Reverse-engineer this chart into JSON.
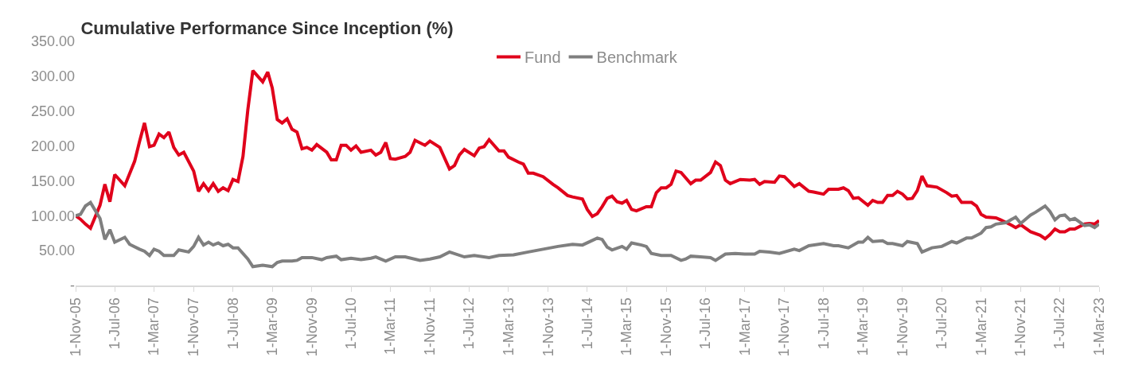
{
  "chart_data": {
    "type": "line",
    "title": "Cumulative Performance Since Inception (%)",
    "xlim": [
      "2005-11-01",
      "2023-03-01"
    ],
    "xticks": [
      {
        "value": "2005-11-01",
        "label": "1-Nov-05"
      },
      {
        "value": "2006-07-01",
        "label": "1-Jul-06"
      },
      {
        "value": "2007-03-01",
        "label": "1-Mar-07"
      },
      {
        "value": "2007-11-01",
        "label": "1-Nov-07"
      },
      {
        "value": "2008-07-01",
        "label": "1-Jul-08"
      },
      {
        "value": "2009-03-01",
        "label": "1-Mar-09"
      },
      {
        "value": "2009-11-01",
        "label": "1-Nov-09"
      },
      {
        "value": "2010-07-01",
        "label": "1-Jul-10"
      },
      {
        "value": "2011-03-01",
        "label": "1-Mar-11"
      },
      {
        "value": "2011-11-01",
        "label": "1-Nov-11"
      },
      {
        "value": "2012-07-01",
        "label": "1-Jul-12"
      },
      {
        "value": "2013-03-01",
        "label": "1-Mar-13"
      },
      {
        "value": "2013-11-01",
        "label": "1-Nov-13"
      },
      {
        "value": "2014-07-01",
        "label": "1-Jul-14"
      },
      {
        "value": "2015-03-01",
        "label": "1-Mar-15"
      },
      {
        "value": "2015-11-01",
        "label": "1-Nov-15"
      },
      {
        "value": "2016-07-01",
        "label": "1-Jul-16"
      },
      {
        "value": "2017-03-01",
        "label": "1-Mar-17"
      },
      {
        "value": "2017-11-01",
        "label": "1-Nov-17"
      },
      {
        "value": "2018-07-01",
        "label": "1-Jul-18"
      },
      {
        "value": "2019-03-01",
        "label": "1-Mar-19"
      },
      {
        "value": "2019-11-01",
        "label": "1-Nov-19"
      },
      {
        "value": "2020-07-01",
        "label": "1-Jul-20"
      },
      {
        "value": "2021-03-01",
        "label": "1-Mar-21"
      },
      {
        "value": "2021-11-01",
        "label": "1-Nov-21"
      },
      {
        "value": "2022-07-01",
        "label": "1-Jul-22"
      },
      {
        "value": "2023-03-01",
        "label": "1-Mar-23"
      }
    ],
    "ylim": [
      0,
      350
    ],
    "yticks": [
      {
        "value": 0,
        "label": "-"
      },
      {
        "value": 50,
        "label": "50.00"
      },
      {
        "value": 100,
        "label": "100.00"
      },
      {
        "value": 150,
        "label": "150.00"
      },
      {
        "value": 200,
        "label": "200.00"
      },
      {
        "value": 250,
        "label": "250.00"
      },
      {
        "value": 300,
        "label": "300.00"
      },
      {
        "value": 350,
        "label": "350.00"
      }
    ],
    "grid": false,
    "legend": "top",
    "line_style": "solid",
    "series": [
      {
        "name": "Fund",
        "color": "#e0001b",
        "x": [
          "2005-11",
          "2005-12",
          "2006-01",
          "2006-02",
          "2006-04",
          "2006-05",
          "2006-06",
          "2006-07",
          "2006-09",
          "2006-11",
          "2006-12",
          "2007-01",
          "2007-02",
          "2007-03",
          "2007-04",
          "2007-05",
          "2007-06",
          "2007-07",
          "2007-08",
          "2007-09",
          "2007-11",
          "2007-12",
          "2008-01",
          "2008-02",
          "2008-03",
          "2008-04",
          "2008-05",
          "2008-06",
          "2008-07",
          "2008-08",
          "2008-09",
          "2008-10",
          "2008-11",
          "2009-01",
          "2009-02",
          "2009-03",
          "2009-04",
          "2009-05",
          "2009-06",
          "2009-07",
          "2009-08",
          "2009-09",
          "2009-10",
          "2009-11",
          "2009-12",
          "2010-02",
          "2010-03",
          "2010-04",
          "2010-05",
          "2010-06",
          "2010-07",
          "2010-08",
          "2010-09",
          "2010-11",
          "2010-12",
          "2011-01",
          "2011-02",
          "2011-03",
          "2011-04",
          "2011-06",
          "2011-07",
          "2011-08",
          "2011-10",
          "2011-11",
          "2012-01",
          "2012-03",
          "2012-04",
          "2012-05",
          "2012-06",
          "2012-08",
          "2012-09",
          "2012-10",
          "2012-11",
          "2013-01",
          "2013-02",
          "2013-03",
          "2013-05",
          "2013-06",
          "2013-07",
          "2013-08",
          "2013-10",
          "2013-12",
          "2014-01",
          "2014-03",
          "2014-04",
          "2014-06",
          "2014-07",
          "2014-08",
          "2014-09",
          "2014-10",
          "2014-11",
          "2014-12",
          "2015-01",
          "2015-02",
          "2015-03",
          "2015-04",
          "2015-05",
          "2015-07",
          "2015-08",
          "2015-09",
          "2015-10",
          "2015-11",
          "2015-12",
          "2016-01",
          "2016-02",
          "2016-04",
          "2016-05",
          "2016-06",
          "2016-08",
          "2016-09",
          "2016-10",
          "2016-11",
          "2016-12",
          "2017-02",
          "2017-04",
          "2017-05",
          "2017-06",
          "2017-07",
          "2017-09",
          "2017-10",
          "2017-11",
          "2018-01",
          "2018-02",
          "2018-04",
          "2018-05",
          "2018-07",
          "2018-08",
          "2018-10",
          "2018-11",
          "2018-12",
          "2019-01",
          "2019-02",
          "2019-04",
          "2019-05",
          "2019-06",
          "2019-07",
          "2019-08",
          "2019-09",
          "2019-10",
          "2019-11",
          "2019-12",
          "2020-01",
          "2020-02",
          "2020-03",
          "2020-04",
          "2020-06",
          "2020-08",
          "2020-09",
          "2020-10",
          "2020-11",
          "2021-01",
          "2021-02",
          "2021-03",
          "2021-04",
          "2021-06",
          "2021-07",
          "2021-09",
          "2021-10",
          "2021-11",
          "2022-01",
          "2022-03",
          "2022-04",
          "2022-05",
          "2022-06",
          "2022-07",
          "2022-08",
          "2022-09",
          "2022-10",
          "2022-12",
          "2023-01",
          "2023-02",
          "2023-03"
        ],
        "values": [
          100,
          95,
          88,
          82,
          115,
          145,
          120,
          159,
          143,
          178,
          206,
          233,
          199,
          201,
          217,
          212,
          220,
          198,
          187,
          191,
          164,
          135,
          146,
          136,
          146,
          135,
          140,
          136,
          152,
          149,
          185,
          252,
          308,
          292,
          306,
          283,
          238,
          233,
          239,
          224,
          220,
          196,
          198,
          194,
          202,
          191,
          180,
          180,
          201,
          201,
          194,
          200,
          191,
          194,
          187,
          191,
          205,
          182,
          181,
          185,
          191,
          208,
          201,
          207,
          198,
          167,
          172,
          187,
          195,
          186,
          197,
          199,
          209,
          193,
          193,
          184,
          177,
          174,
          161,
          161,
          156,
          145,
          140,
          129,
          127,
          124,
          109,
          99,
          103,
          113,
          125,
          128,
          120,
          118,
          122,
          109,
          107,
          113,
          113,
          133,
          140,
          140,
          145,
          164,
          162,
          146,
          151,
          151,
          162,
          177,
          172,
          151,
          146,
          152,
          151,
          152,
          145,
          149,
          148,
          157,
          156,
          142,
          146,
          135,
          134,
          131,
          138,
          138,
          140,
          136,
          125,
          126,
          115,
          122,
          119,
          119,
          129,
          129,
          135,
          131,
          124,
          125,
          136,
          157,
          143,
          141,
          133,
          128,
          129,
          119,
          119,
          114,
          102,
          98,
          97,
          94,
          87,
          83,
          87,
          77,
          72,
          67,
          73,
          81,
          77,
          77,
          81,
          81,
          88,
          89,
          88,
          93
        ]
      },
      {
        "name": "Benchmark",
        "color": "#7f7f7f",
        "x": [
          "2005-11",
          "2005-12",
          "2006-01",
          "2006-02",
          "2006-04",
          "2006-05",
          "2006-06",
          "2006-07",
          "2006-09",
          "2006-10",
          "2006-12",
          "2007-01",
          "2007-02",
          "2007-03",
          "2007-04",
          "2007-05",
          "2007-07",
          "2007-08",
          "2007-10",
          "2007-11",
          "2007-12",
          "2008-01",
          "2008-02",
          "2008-03",
          "2008-04",
          "2008-05",
          "2008-06",
          "2008-07",
          "2008-08",
          "2008-10",
          "2008-11",
          "2009-01",
          "2009-03",
          "2009-04",
          "2009-05",
          "2009-07",
          "2009-08",
          "2009-09",
          "2009-11",
          "2010-01",
          "2010-02",
          "2010-04",
          "2010-05",
          "2010-07",
          "2010-09",
          "2010-11",
          "2010-12",
          "2011-02",
          "2011-04",
          "2011-06",
          "2011-09",
          "2011-11",
          "2012-01",
          "2012-03",
          "2012-06",
          "2012-08",
          "2012-11",
          "2013-01",
          "2013-04",
          "2013-07",
          "2013-10",
          "2014-01",
          "2014-04",
          "2014-06",
          "2014-09",
          "2014-10",
          "2014-11",
          "2014-12",
          "2015-02",
          "2015-03",
          "2015-04",
          "2015-06",
          "2015-07",
          "2015-08",
          "2015-10",
          "2015-12",
          "2016-02",
          "2016-03",
          "2016-04",
          "2016-06",
          "2016-08",
          "2016-09",
          "2016-11",
          "2017-01",
          "2017-03",
          "2017-05",
          "2017-06",
          "2017-08",
          "2017-10",
          "2018-01",
          "2018-02",
          "2018-04",
          "2018-07",
          "2018-09",
          "2018-10",
          "2018-12",
          "2019-02",
          "2019-03",
          "2019-04",
          "2019-05",
          "2019-07",
          "2019-08",
          "2019-09",
          "2019-11",
          "2019-12",
          "2020-02",
          "2020-03",
          "2020-05",
          "2020-07",
          "2020-09",
          "2020-10",
          "2020-12",
          "2021-01",
          "2021-03",
          "2021-04",
          "2021-05",
          "2021-06",
          "2021-08",
          "2021-10",
          "2021-11",
          "2022-01",
          "2022-02",
          "2022-04",
          "2022-05",
          "2022-06",
          "2022-07",
          "2022-08",
          "2022-09",
          "2022-10",
          "2022-12",
          "2023-01",
          "2023-02",
          "2023-03"
        ],
        "values": [
          100,
          102,
          114,
          119,
          96,
          66,
          80,
          62,
          69,
          59,
          52,
          49,
          43,
          52,
          49,
          43,
          43,
          51,
          48,
          56,
          69,
          58,
          62,
          58,
          61,
          57,
          59,
          54,
          54,
          38,
          27,
          29,
          27,
          33,
          35,
          35,
          36,
          40,
          40,
          37,
          40,
          42,
          37,
          39,
          37,
          39,
          41,
          35,
          41,
          41,
          36,
          38,
          41,
          48,
          41,
          43,
          40,
          43,
          44,
          48,
          52,
          56,
          59,
          58,
          68,
          66,
          55,
          51,
          56,
          52,
          61,
          58,
          56,
          46,
          43,
          43,
          36,
          38,
          42,
          41,
          40,
          36,
          45,
          46,
          45,
          45,
          49,
          48,
          46,
          52,
          50,
          57,
          60,
          57,
          57,
          54,
          62,
          62,
          69,
          63,
          64,
          60,
          60,
          57,
          63,
          60,
          48,
          54,
          56,
          63,
          61,
          68,
          68,
          75,
          83,
          84,
          88,
          90,
          98,
          89,
          101,
          105,
          114,
          106,
          94,
          100,
          101,
          94,
          96,
          86,
          87,
          83,
          88
        ]
      }
    ]
  }
}
